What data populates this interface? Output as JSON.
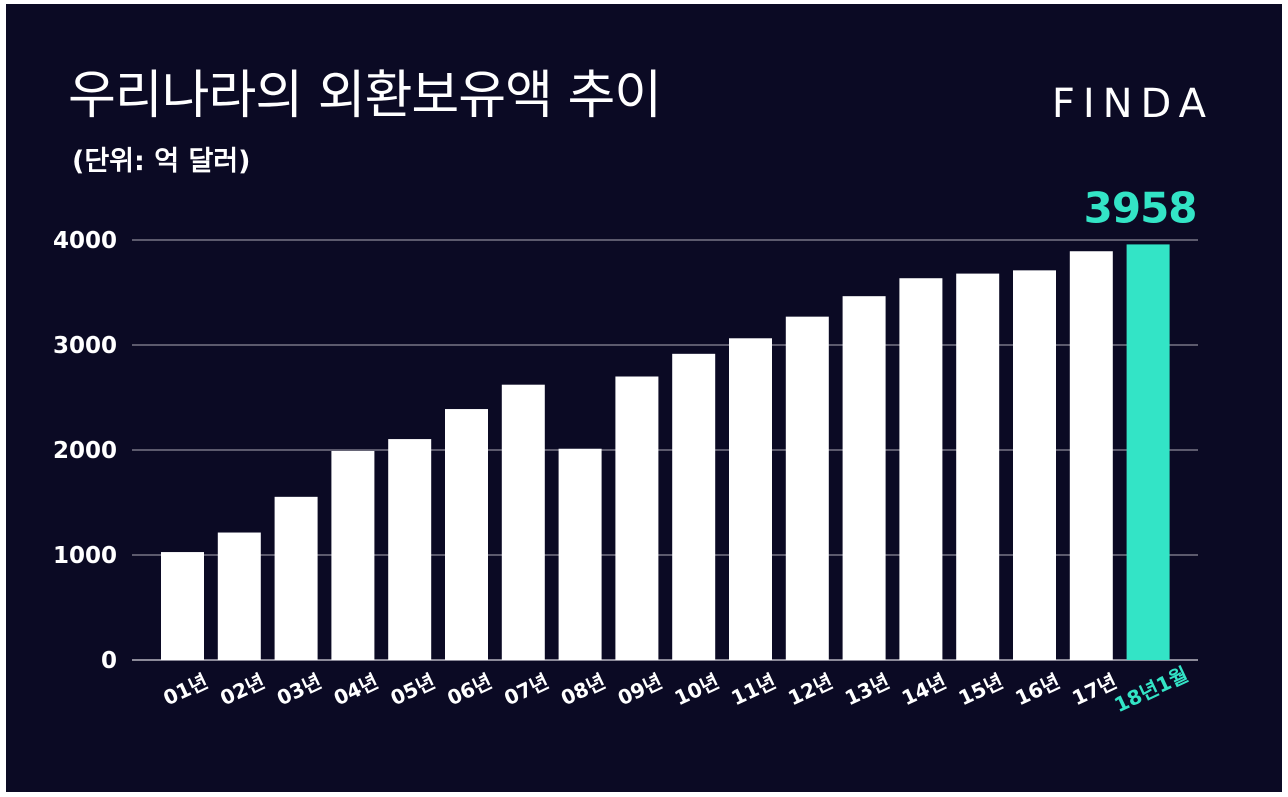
{
  "title": "우리나라의 외환보유액 추이",
  "subtitle": "(단위: 억 달러)",
  "logo": "FINDA",
  "colors": {
    "background": "#0b0a24",
    "bar": "#ffffff",
    "highlight": "#33e4c6",
    "grid": "#8c8a99",
    "text": "#ffffff"
  },
  "chart_data": {
    "type": "bar",
    "title": "우리나라의 외환보유액 추이",
    "subtitle": "(단위: 억 달러)",
    "categories": [
      "01년",
      "02년",
      "03년",
      "04년",
      "05년",
      "06년",
      "07년",
      "08년",
      "09년",
      "10년",
      "11년",
      "12년",
      "13년",
      "14년",
      "15년",
      "16년",
      "17년",
      "18년1월"
    ],
    "values": [
      1028,
      1214,
      1554,
      1991,
      2104,
      2390,
      2622,
      2012,
      2700,
      2916,
      3064,
      3270,
      3465,
      3636,
      3680,
      3711,
      3893,
      3958
    ],
    "highlight_index": 17,
    "highlight_label": "3958",
    "yticks": [
      0,
      1000,
      2000,
      3000,
      4000
    ],
    "ylim": [
      0,
      4000
    ],
    "grid": true,
    "legend": "none"
  }
}
